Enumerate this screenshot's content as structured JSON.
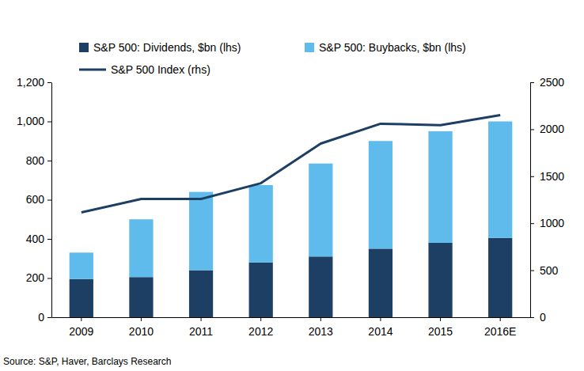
{
  "chart_data": {
    "type": "bar",
    "stacked": true,
    "legend": "top",
    "categories": [
      "2009",
      "2010",
      "2011",
      "2012",
      "2013",
      "2014",
      "2015",
      "2016E"
    ],
    "series": [
      {
        "name": "S&P 500: Dividends, $bn (lhs)",
        "type": "bar",
        "color": "#1d3f63",
        "values": [
          195,
          205,
          240,
          280,
          310,
          350,
          380,
          405
        ]
      },
      {
        "name": "S&P 500: Buybacks, $bn (lhs)",
        "type": "bar",
        "color": "#5ebbeb",
        "values": [
          135,
          295,
          400,
          395,
          475,
          550,
          570,
          595
        ]
      },
      {
        "name": "S&P 500 Index (rhs)",
        "type": "line",
        "axis": "y2",
        "color": "#1d3f63",
        "values": [
          1115,
          1258,
          1258,
          1426,
          1848,
          2059,
          2044,
          2150
        ]
      }
    ],
    "ylim": [
      0,
      1200
    ],
    "yticks": [
      0,
      200,
      400,
      600,
      800,
      {
        "value": 1000,
        "label": "1,000"
      },
      {
        "value": 1200,
        "label": "1,200"
      }
    ],
    "y2lim": [
      0,
      2500
    ],
    "y2ticks": [
      0,
      500,
      1000,
      1500,
      2000,
      2500
    ],
    "source": "Source: S&P, Haver, Barclays Research"
  }
}
